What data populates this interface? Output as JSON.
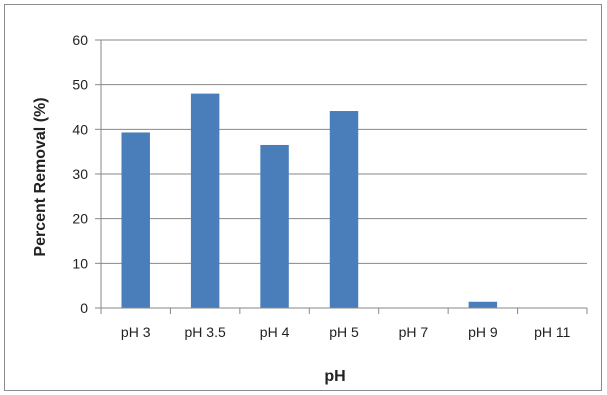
{
  "chart_data": {
    "type": "bar",
    "title": "",
    "xlabel": "pH",
    "ylabel": "Percent Removal (%)",
    "categories": [
      "pH 3",
      "pH 3.5",
      "pH 4",
      "pH 5",
      "pH 7",
      "pH 9",
      "pH 11"
    ],
    "values": [
      39.3,
      48.0,
      36.5,
      44.1,
      0,
      1.4,
      0
    ],
    "ylim": [
      0,
      60
    ],
    "yticks": [
      0,
      10,
      20,
      30,
      40,
      50,
      60
    ],
    "grid": true,
    "legend": "none",
    "bar_color": "#4a7ebb",
    "grid_color": "#878787"
  }
}
